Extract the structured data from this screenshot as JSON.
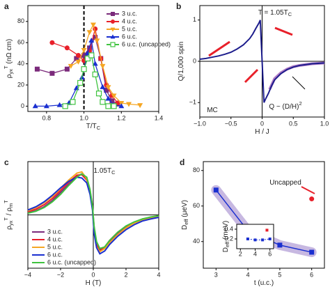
{
  "chart_data": [
    {
      "type": "line",
      "label": "a",
      "xlabel": [
        {
          "text": "T/T"
        },
        {
          "sub": "C"
        }
      ],
      "ylabel": [
        {
          "text": "ρ"
        },
        {
          "sub": "yx"
        },
        {
          "sup": "T"
        },
        {
          "text": " (nΩ cm)"
        }
      ],
      "xlim": [
        0.7,
        1.4
      ],
      "xticks": [
        0.8,
        {
          "value": 1,
          "label": "1.0"
        },
        1.2,
        1.4
      ],
      "ylim": [
        -5,
        95
      ],
      "yticks": [
        0,
        20,
        40,
        60,
        80
      ],
      "ref_x": 1,
      "legend": "upper right",
      "series": [
        {
          "name": "3 u.c.",
          "color": "#7b2a7b",
          "marker": "square",
          "x": [
            0.75,
            0.83,
            0.91,
            0.96,
            1.0,
            1.03,
            1.06,
            1.09,
            1.12,
            1.15,
            1.18
          ],
          "values": [
            35,
            31,
            35,
            45,
            48,
            55,
            65,
            45,
            15,
            5,
            2
          ]
        },
        {
          "name": "4 u.c.",
          "color": "#e8202a",
          "marker": "circle",
          "x": [
            0.83,
            0.91,
            0.97,
            1.0,
            1.03,
            1.06,
            1.09,
            1.12,
            1.15,
            1.18
          ],
          "values": [
            60,
            55,
            48,
            43,
            52,
            73,
            45,
            20,
            10,
            3
          ]
        },
        {
          "name": "5 u.c.",
          "color": "#f5a623",
          "marker": "tri-down",
          "x": [
            0.93,
            0.97,
            1.0,
            1.03,
            1.05,
            1.07,
            1.1,
            1.13,
            1.16,
            1.2,
            1.24,
            1.3
          ],
          "values": [
            38,
            42,
            53,
            70,
            77,
            62,
            38,
            18,
            10,
            3,
            2,
            1
          ]
        },
        {
          "name": "6 u.c.",
          "color": "#1a2fd0",
          "marker": "tri-up",
          "x": [
            0.74,
            0.8,
            0.87,
            0.92,
            0.96,
            0.99,
            1.02,
            1.04,
            1.06,
            1.1,
            1.13,
            1.16,
            1.2
          ],
          "values": [
            0,
            0,
            1,
            3,
            17,
            27,
            50,
            62,
            40,
            18,
            7,
            1,
            0
          ]
        },
        {
          "name": "6 u.c. (uncapped)",
          "color": "#3fc33f",
          "marker": "square-open",
          "x": [
            0.9,
            0.94,
            0.98,
            1.0,
            1.02,
            1.04,
            1.06,
            1.08,
            1.1,
            1.13,
            1.16
          ],
          "values": [
            0,
            4,
            22,
            35,
            45,
            48,
            30,
            12,
            4,
            0,
            0
          ]
        }
      ]
    },
    {
      "type": "line",
      "label": "b",
      "xlabel": [
        {
          "text": "H / J"
        }
      ],
      "ylabel": [
        {
          "text": "Q/1,000 spin"
        }
      ],
      "xlim": [
        -1,
        1
      ],
      "xticks": [
        {
          "value": -1,
          "label": "−1.0"
        },
        {
          "value": -0.5,
          "label": "−0.5"
        },
        0,
        0.5,
        {
          "value": 1,
          "label": "1.0"
        }
      ],
      "ylim": [
        -1.35,
        1.35
      ],
      "yticks": [
        {
          "value": -1,
          "label": "−1"
        },
        0,
        1
      ],
      "zero_lines": true,
      "annotations": [
        [
          {
            "text": "T = 1.05T"
          },
          {
            "sub": "C"
          }
        ],
        [
          {
            "text": "MC"
          }
        ],
        [
          {
            "text": "Q ~ (D/H)"
          },
          {
            "sup": "2"
          }
        ]
      ],
      "series": [
        {
          "color": "#b07cc6",
          "width": 4,
          "x": [
            0.12,
            0.2,
            0.3,
            0.4,
            0.5,
            0.6,
            0.7,
            0.8,
            1.0
          ],
          "values": [
            -0.68,
            -0.42,
            -0.28,
            -0.19,
            -0.13,
            -0.1,
            -0.08,
            -0.06,
            -0.04
          ]
        },
        {
          "color": "#1c1c8c",
          "width": 2,
          "x": [
            -1,
            -0.9,
            -0.8,
            -0.7,
            -0.6,
            -0.5,
            -0.4,
            -0.3,
            -0.2,
            -0.15,
            -0.1,
            -0.05,
            -0.03,
            -0.015,
            0,
            0.015,
            0.03,
            0.05,
            0.1,
            0.15,
            0.2,
            0.3,
            0.4,
            0.5,
            0.6,
            0.7,
            0.8,
            0.9,
            1.0
          ],
          "values": [
            0.05,
            0.07,
            0.1,
            0.13,
            0.17,
            0.22,
            0.3,
            0.4,
            0.55,
            0.66,
            0.8,
            0.93,
            1.0,
            0.5,
            0,
            -0.5,
            -1.0,
            -0.93,
            -0.78,
            -0.6,
            -0.45,
            -0.3,
            -0.2,
            -0.14,
            -0.1,
            -0.08,
            -0.06,
            -0.05,
            -0.04
          ]
        }
      ]
    },
    {
      "type": "line",
      "label": "c",
      "xlabel": [
        {
          "text": "H (T)"
        }
      ],
      "ylabel": [
        {
          "text": "ρ"
        },
        {
          "sub": "yx"
        },
        {
          "sup": "T"
        },
        {
          "text": " / ρ"
        },
        {
          "sub": "m"
        },
        {
          "sup": "T"
        }
      ],
      "xlim": [
        -4,
        4
      ],
      "xticks": [
        {
          "value": -4,
          "label": "−4"
        },
        {
          "value": -2,
          "label": "−2"
        },
        0,
        2,
        4
      ],
      "ylim": [
        -1.3,
        1.3
      ],
      "zero_lines": true,
      "legend": "lower left",
      "annotations": [
        [
          {
            "text": "1.05T"
          },
          {
            "sub": "C"
          }
        ]
      ],
      "series": [
        {
          "name": "3 u.c.",
          "color": "#7b2a7b",
          "width": 2,
          "x": [
            -4,
            -3.5,
            -3,
            -2.5,
            -2,
            -1.5,
            -1,
            -0.7,
            -0.4,
            -0.2,
            -0.05,
            0.05,
            0.2,
            0.4,
            0.7,
            1,
            1.5,
            2,
            2.5,
            3,
            3.5,
            4
          ],
          "values": [
            0.05,
            0.1,
            0.2,
            0.35,
            0.55,
            0.75,
            0.95,
            1.0,
            0.9,
            0.6,
            0.2,
            -0.3,
            -0.7,
            -0.85,
            -0.8,
            -0.65,
            -0.45,
            -0.3,
            -0.2,
            -0.12,
            -0.07,
            -0.03
          ]
        },
        {
          "name": "4 u.c.",
          "color": "#e8202a",
          "width": 2,
          "x": [
            -4,
            -3.5,
            -3,
            -2.5,
            -2,
            -1.5,
            -1,
            -0.7,
            -0.4,
            -0.2,
            -0.05,
            0.05,
            0.2,
            0.4,
            0.7,
            1,
            1.5,
            2,
            2.5,
            3,
            3.5,
            4
          ],
          "values": [
            0.08,
            0.14,
            0.25,
            0.4,
            0.6,
            0.8,
            0.97,
            0.98,
            0.85,
            0.55,
            0.15,
            -0.35,
            -0.72,
            -0.88,
            -0.78,
            -0.62,
            -0.42,
            -0.28,
            -0.18,
            -0.1,
            -0.06,
            -0.02
          ]
        },
        {
          "name": "5 u.c.",
          "color": "#f5a623",
          "width": 2,
          "x": [
            -4,
            -3.5,
            -3,
            -2.5,
            -2,
            -1.5,
            -1,
            -0.7,
            -0.4,
            -0.2,
            -0.05,
            0.05,
            0.2,
            0.4,
            0.7,
            1,
            1.5,
            2,
            2.5,
            3,
            3.5,
            4
          ],
          "values": [
            0.1,
            0.18,
            0.3,
            0.45,
            0.65,
            0.85,
            1.02,
            1.05,
            0.88,
            0.58,
            0.18,
            -0.4,
            -0.78,
            -0.9,
            -0.82,
            -0.68,
            -0.48,
            -0.32,
            -0.2,
            -0.12,
            -0.08,
            -0.04
          ]
        },
        {
          "name": "6 u.c.",
          "color": "#1a2fd0",
          "width": 2,
          "x": [
            -4,
            -3.5,
            -3,
            -2.5,
            -2,
            -1.5,
            -1,
            -0.7,
            -0.4,
            -0.2,
            -0.05,
            0.05,
            0.2,
            0.4,
            0.7,
            1,
            1.5,
            2,
            2.5,
            3,
            3.5,
            4
          ],
          "values": [
            0.12,
            0.2,
            0.32,
            0.48,
            0.66,
            0.82,
            0.92,
            0.9,
            0.78,
            0.5,
            0.12,
            -0.45,
            -0.8,
            -0.95,
            -0.88,
            -0.72,
            -0.52,
            -0.36,
            -0.24,
            -0.15,
            -0.1,
            -0.06
          ]
        },
        {
          "name": "6 u.c. (uncapped)",
          "color": "#3fc33f",
          "width": 2,
          "x": [
            -4,
            -3.5,
            -3,
            -2.5,
            -2,
            -1.5,
            -1,
            -0.7,
            -0.4,
            -0.2,
            -0.05,
            0.05,
            0.2,
            0.4,
            0.7,
            1,
            1.5,
            2,
            2.5,
            3,
            3.5,
            4
          ],
          "values": [
            0.04,
            0.09,
            0.18,
            0.32,
            0.5,
            0.72,
            0.92,
            1.0,
            0.92,
            0.62,
            0.22,
            -0.28,
            -0.65,
            -0.82,
            -0.78,
            -0.62,
            -0.42,
            -0.27,
            -0.17,
            -0.1,
            -0.05,
            -0.02
          ]
        }
      ]
    },
    {
      "type": "line",
      "label": "d",
      "xlabel": [
        {
          "text": "t (u.c.)"
        }
      ],
      "ylabel": [
        {
          "text": "D"
        },
        {
          "sub": "eff"
        },
        {
          "text": " (μeV)"
        }
      ],
      "xlim": [
        2.6,
        6.4
      ],
      "xticks": [
        3,
        4,
        5,
        6
      ],
      "ylim": [
        25,
        85
      ],
      "yticks": [
        40,
        60,
        80
      ],
      "annotations": [
        [
          {
            "text": "Uncapped"
          }
        ]
      ],
      "series": [
        {
          "color": "#1a2fd0",
          "marker": "square",
          "band": "#b9a6da",
          "width": 1.5,
          "x": [
            3,
            4,
            5,
            6
          ],
          "values": [
            69,
            46,
            38,
            34
          ]
        },
        {
          "color": "#e8202a",
          "marker": "circle",
          "line": false,
          "x": [
            6
          ],
          "values": [
            64
          ]
        }
      ]
    },
    {
      "type": "line",
      "ylabel": [
        {
          "text": "D"
        },
        {
          "sub": "eff"
        },
        {
          "text": " (meV)"
        }
      ],
      "xlim": [
        1.5,
        6.5
      ],
      "xticks": [
        2,
        4,
        6
      ],
      "ylim": [
        0,
        0.5
      ],
      "yticks": [
        0.2,
        0.4
      ],
      "small": true,
      "series": [
        {
          "color": "#1a2fd0",
          "marker": "square",
          "dash": true,
          "width": 1,
          "x": [
            3,
            4,
            5,
            6
          ],
          "values": [
            0.2,
            0.18,
            0.18,
            0.2
          ]
        },
        {
          "color": "#e8202a",
          "marker": "square",
          "line": false,
          "x": [
            5.6
          ],
          "values": [
            0.38
          ]
        }
      ]
    }
  ]
}
